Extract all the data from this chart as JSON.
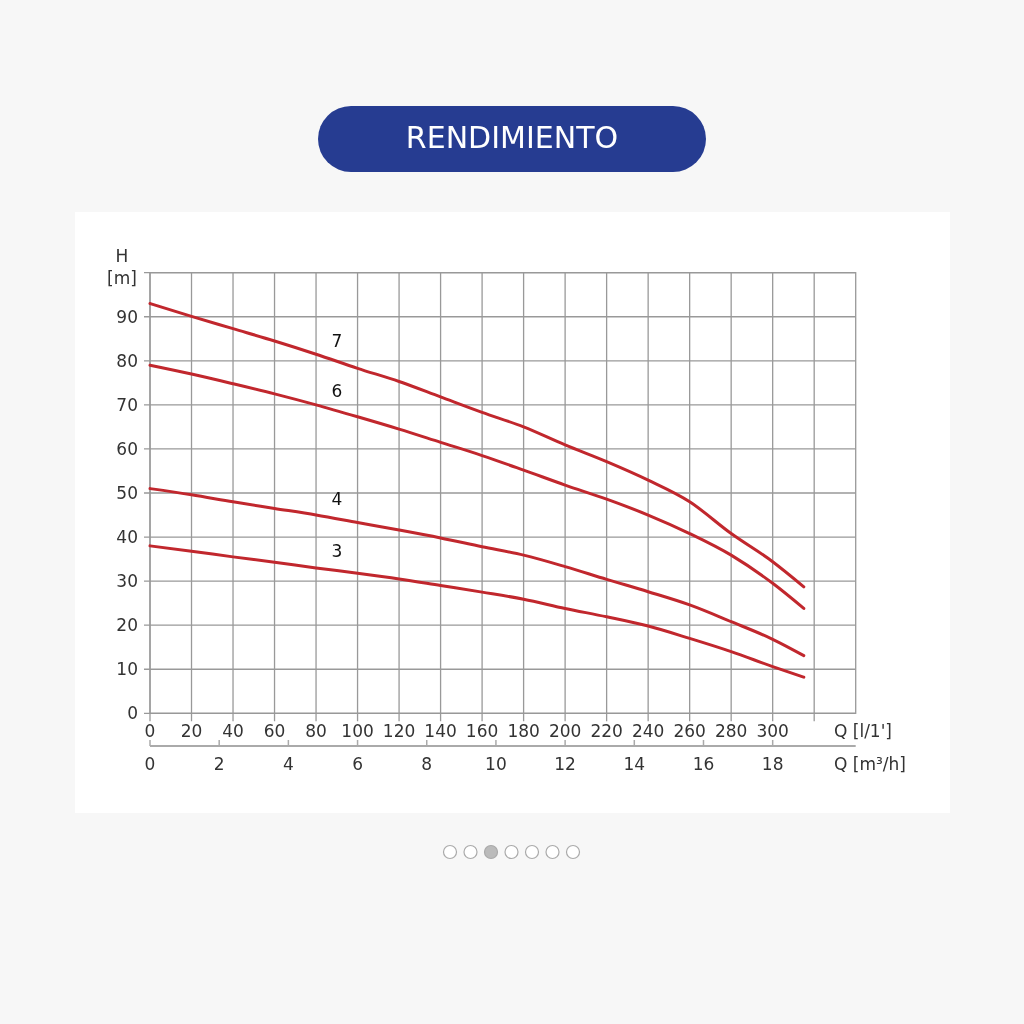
{
  "chart_data": {
    "type": "line",
    "title": "RENDIMIENTO",
    "ylabel": "H [m]",
    "xlabel": "Q [l/1']",
    "x2label": "Q [m³/h]",
    "x": [
      0,
      20,
      40,
      60,
      80,
      100,
      120,
      140,
      160,
      180,
      200,
      220,
      240,
      260,
      280,
      300,
      315
    ],
    "series": [
      {
        "name": "7",
        "color": "#c1272d",
        "values": [
          93,
          90.1,
          87.3,
          84.5,
          81.5,
          78.3,
          75.3,
          71.8,
          68.3,
          65,
          60.9,
          57.1,
          52.9,
          48,
          40.8,
          34.4,
          28.7
        ]
      },
      {
        "name": "6",
        "color": "#c1272d",
        "values": [
          79,
          77,
          74.8,
          72.5,
          70,
          67.3,
          64.5,
          61.5,
          58.5,
          55.2,
          51.8,
          48.6,
          45,
          40.8,
          35.9,
          29.5,
          23.8
        ]
      },
      {
        "name": "4",
        "color": "#c1272d",
        "values": [
          51,
          49.6,
          48,
          46.5,
          45,
          43.3,
          41.6,
          39.8,
          37.8,
          35.9,
          33.3,
          30.4,
          27.6,
          24.6,
          20.8,
          16.8,
          13.1
        ]
      },
      {
        "name": "3",
        "color": "#c1272d",
        "values": [
          38,
          36.8,
          35.5,
          34.3,
          33,
          31.8,
          30.5,
          29,
          27.5,
          25.9,
          23.8,
          21.9,
          19.8,
          17,
          14,
          10.6,
          8.2
        ]
      }
    ],
    "xlim": [
      0,
      340
    ],
    "xticks": [
      0,
      20,
      40,
      60,
      80,
      100,
      120,
      140,
      160,
      180,
      200,
      220,
      240,
      260,
      280,
      300,
      {
        "value": 320,
        "label": null
      }
    ],
    "ylim": [
      0,
      100
    ],
    "yticks": [
      0,
      10,
      20,
      30,
      40,
      50,
      60,
      70,
      80,
      90,
      {
        "value": 100,
        "label": null
      }
    ],
    "x2lim": [
      0,
      20.4
    ],
    "x2ticks": [
      0,
      2,
      4,
      6,
      8,
      10,
      12,
      14,
      16,
      18
    ],
    "grid": true,
    "marker": "none",
    "line_style": "solid"
  }
}
